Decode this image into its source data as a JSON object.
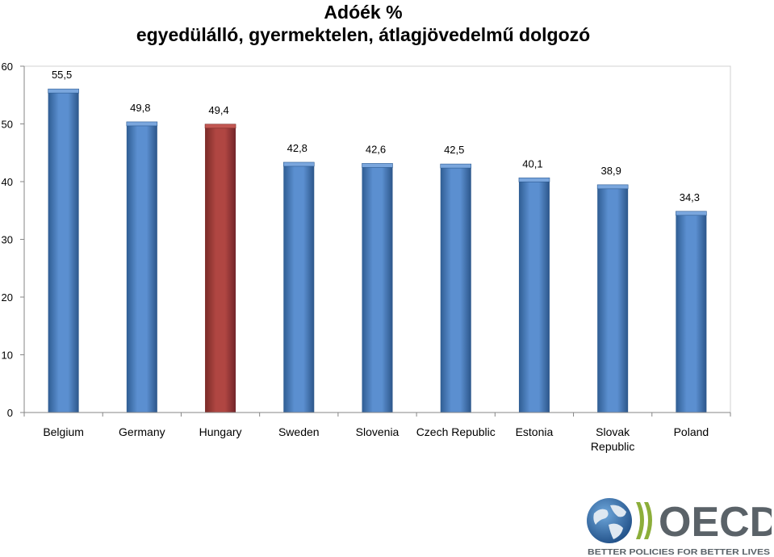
{
  "chart_data": {
    "type": "bar",
    "title": "Adóék %",
    "subtitle": "egyedülálló, gyermektelen, átlagjövedelmű dolgozó",
    "categories": [
      "Belgium",
      "Germany",
      "Hungary",
      "Sweden",
      "Slovenia",
      "Czech Republic",
      "Estonia",
      "Slovak Republic",
      "Poland"
    ],
    "category_lines": [
      [
        "Belgium"
      ],
      [
        "Germany"
      ],
      [
        "Hungary"
      ],
      [
        "Sweden"
      ],
      [
        "Slovenia"
      ],
      [
        "Czech Republic"
      ],
      [
        "Estonia"
      ],
      [
        "Slovak",
        "Republic"
      ],
      [
        "Poland"
      ]
    ],
    "values": [
      55.5,
      49.8,
      49.4,
      42.8,
      42.6,
      42.5,
      40.1,
      38.9,
      34.3
    ],
    "value_labels": [
      "55,5",
      "49,8",
      "49,4",
      "42,8",
      "42,6",
      "42,5",
      "40,1",
      "38,9",
      "34,3"
    ],
    "highlight_category": "Hungary",
    "ylim": [
      0,
      60
    ],
    "yticks": [
      "0",
      "10",
      "20",
      "30",
      "40",
      "50",
      "60"
    ],
    "ytick_values": [
      0,
      10,
      20,
      30,
      40,
      50,
      60
    ],
    "xlabel": "",
    "ylabel": "",
    "grid": false,
    "legend": "none",
    "colors": {
      "bar": "#4f81bd",
      "highlight": "#a5403c"
    }
  },
  "logo": {
    "name": "OECD",
    "tagline": "BETTER POLICIES FOR BETTER LIVES",
    "icon": "globe-icon"
  }
}
